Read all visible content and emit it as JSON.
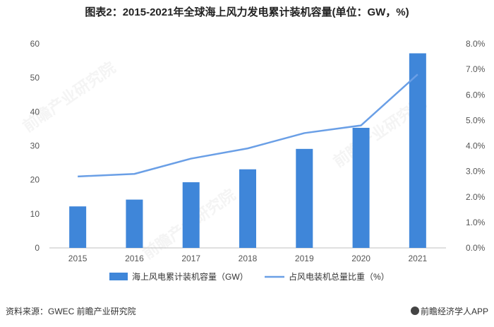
{
  "title": "图表2：2015-2021年全球海上风力发电累计装机容量(单位：GW，%)",
  "source": "资料来源：GWEC 前瞻产业研究院",
  "brand": "前瞻经济学人APP",
  "watermark": "前瞻产业研究院",
  "colors": {
    "bar": "#3f86d9",
    "line": "#6a9fe6",
    "axis": "#999999",
    "text": "#555555"
  },
  "chart_data": {
    "type": "bar",
    "categories": [
      "2015",
      "2016",
      "2017",
      "2018",
      "2019",
      "2020",
      "2021"
    ],
    "series": [
      {
        "name": "海上风电累计装机容量（GW）",
        "type": "bar",
        "axis": "left",
        "values": [
          12.2,
          14.2,
          19.3,
          23.1,
          29.1,
          35.3,
          57.2
        ]
      },
      {
        "name": "占风电装机总量比重（%）",
        "type": "line",
        "axis": "right",
        "values": [
          2.8,
          2.9,
          3.5,
          3.9,
          4.5,
          4.8,
          6.8
        ]
      }
    ],
    "ylim": [
      0,
      60
    ],
    "yticks": [
      "0",
      "10",
      "20",
      "30",
      "40",
      "50",
      "60"
    ],
    "y2lim": [
      0,
      8
    ],
    "y2ticks": [
      "0.0%",
      "1.0%",
      "2.0%",
      "3.0%",
      "4.0%",
      "5.0%",
      "6.0%",
      "7.0%",
      "8.0%"
    ],
    "legend_position": "bottom",
    "grid": false
  }
}
